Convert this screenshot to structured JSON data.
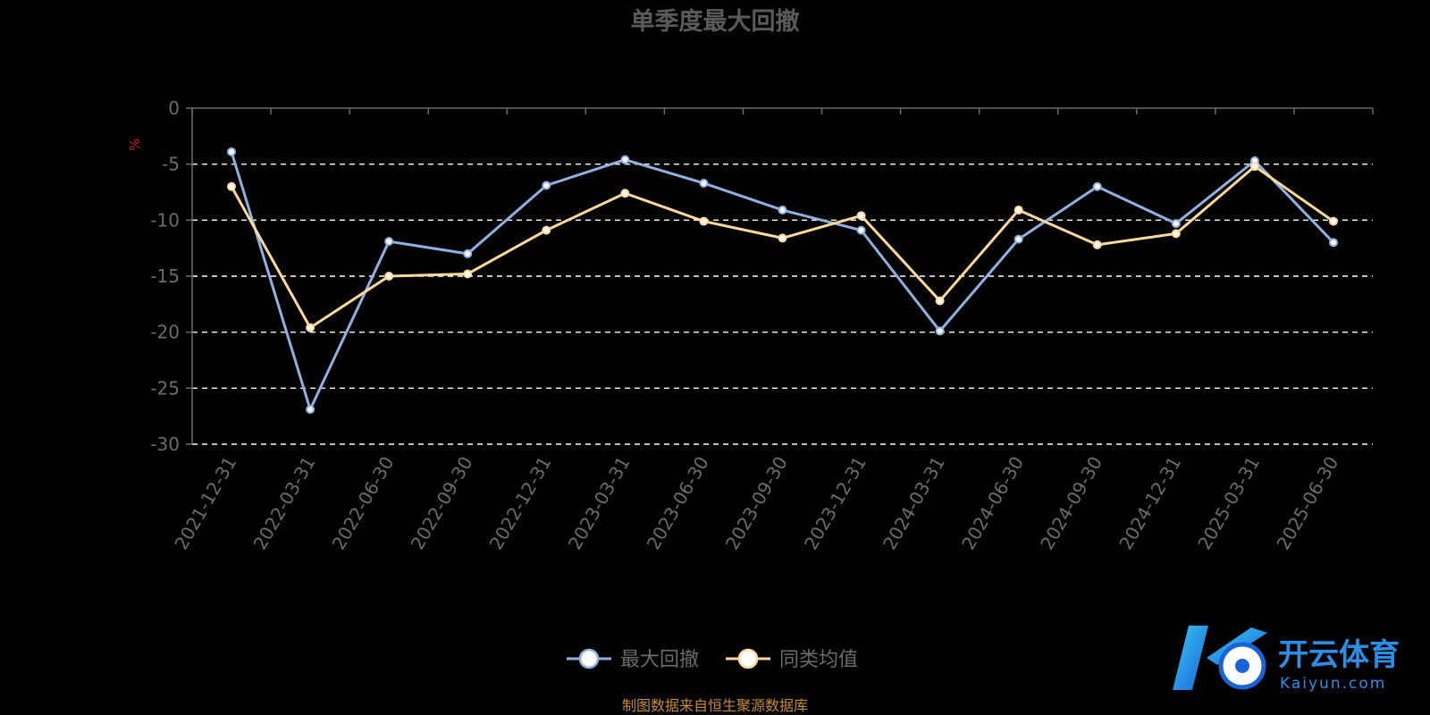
{
  "chart_data": {
    "type": "line",
    "title": "单季度最大回撤",
    "ylabel": "%",
    "ylim": [
      -30,
      0
    ],
    "yticks": [
      0,
      -5,
      -10,
      -15,
      -20,
      -25,
      -30
    ],
    "grid": true,
    "legend_position": "bottom-center",
    "categories": [
      "2021-12-31",
      "2022-03-31",
      "2022-06-30",
      "2022-09-30",
      "2022-12-31",
      "2023-03-31",
      "2023-06-30",
      "2023-09-30",
      "2023-12-31",
      "2024-03-31",
      "2024-06-30",
      "2024-09-30",
      "2024-12-31",
      "2025-03-31",
      "2025-06-30"
    ],
    "series": [
      {
        "name": "最大回撤",
        "color": "#8fb0e0",
        "values": [
          -3.9,
          -26.9,
          -11.9,
          -13.0,
          -6.9,
          -4.6,
          -6.7,
          -9.1,
          -10.9,
          -19.9,
          -11.7,
          -7.0,
          -10.3,
          -4.7,
          -12.0
        ]
      },
      {
        "name": "同类均值",
        "color": "#ffd89a",
        "values": [
          -7.0,
          -19.6,
          -15.0,
          -14.8,
          -10.9,
          -7.6,
          -10.1,
          -11.6,
          -9.6,
          -17.2,
          -9.1,
          -12.2,
          -11.2,
          -5.2,
          -10.1
        ]
      }
    ]
  },
  "source_note": "制图数据来自恒生聚源数据库",
  "watermark": {
    "brand_cn": "开云体育",
    "brand_en": "Kaiyun.com",
    "mark": "K"
  }
}
